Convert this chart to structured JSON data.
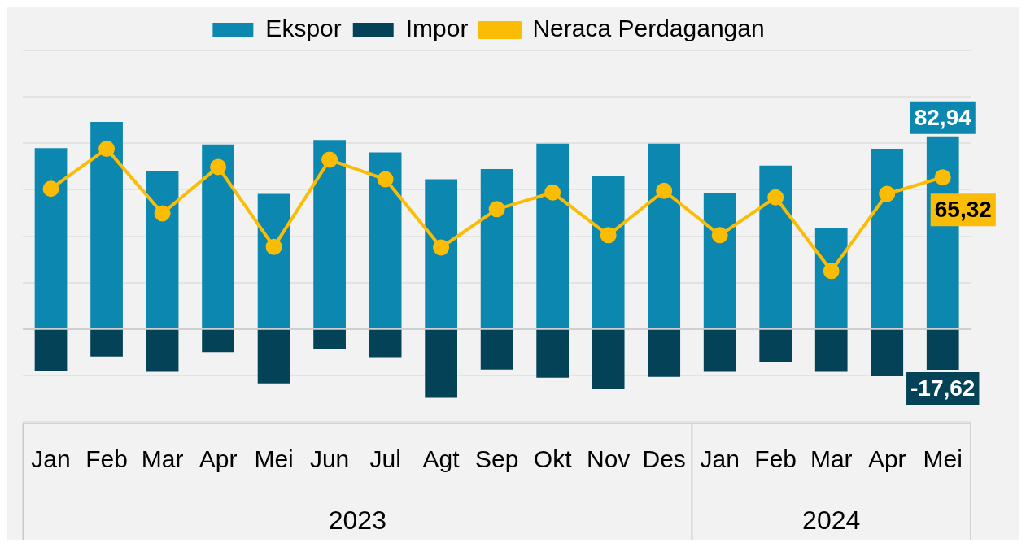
{
  "chart_data": {
    "type": "bar",
    "stacked": true,
    "categories": [
      "Jan",
      "Feb",
      "Mar",
      "Apr",
      "Mei",
      "Jun",
      "Jul",
      "Agt",
      "Sep",
      "Okt",
      "Nov",
      "Des",
      "Jan",
      "Feb",
      "Mar",
      "Apr",
      "Mei"
    ],
    "series": [
      {
        "name": "Ekspor",
        "color": "#0b87b0",
        "values": [
          77.9,
          89.2,
          67.9,
          79.5,
          58.2,
          81.4,
          76.1,
          64.5,
          68.9,
          79.8,
          66.0,
          79.8,
          58.5,
          70.4,
          43.5,
          77.6,
          82.94
        ],
        "value_labels": [
          null,
          null,
          null,
          null,
          null,
          null,
          null,
          null,
          null,
          null,
          null,
          null,
          null,
          null,
          null,
          null,
          "82,94"
        ]
      },
      {
        "name": "Impor",
        "color": "#044357",
        "values": [
          -18.2,
          -11.9,
          -18.5,
          -10.0,
          -23.5,
          -8.8,
          -12.2,
          -29.7,
          -17.5,
          -21.0,
          -26.0,
          -20.7,
          -18.5,
          -14.1,
          -18.5,
          -20.0,
          -17.62
        ],
        "value_labels": [
          null,
          null,
          null,
          null,
          null,
          null,
          null,
          null,
          null,
          null,
          null,
          null,
          null,
          null,
          null,
          null,
          "-17,62"
        ]
      },
      {
        "name": "Neraca Perdagangan",
        "type": "line",
        "color": "#fbbc05",
        "marker": "circle",
        "values": [
          60.4,
          77.6,
          49.8,
          69.8,
          35.4,
          72.9,
          64.5,
          35.1,
          51.6,
          58.8,
          40.4,
          59.5,
          40.4,
          56.7,
          25.0,
          58.2,
          65.32
        ],
        "value_labels": [
          null,
          null,
          null,
          null,
          null,
          null,
          null,
          null,
          null,
          null,
          null,
          null,
          null,
          null,
          null,
          null,
          "65,32"
        ]
      }
    ],
    "ylim": [
      -40,
      120
    ],
    "yticks": [
      {
        "value": -40,
        "label": null
      },
      {
        "value": -20,
        "label": null
      },
      {
        "value": 0,
        "label": null
      },
      {
        "value": 20,
        "label": null
      },
      {
        "value": 40,
        "label": null
      },
      {
        "value": 60,
        "label": null
      },
      {
        "value": 80,
        "label": null
      },
      {
        "value": 100,
        "label": null
      },
      {
        "value": 120,
        "label": null
      }
    ],
    "tick_labels": "x",
    "grid": "y",
    "legend": "top",
    "annotations": [
      "2023",
      "2024"
    ]
  }
}
